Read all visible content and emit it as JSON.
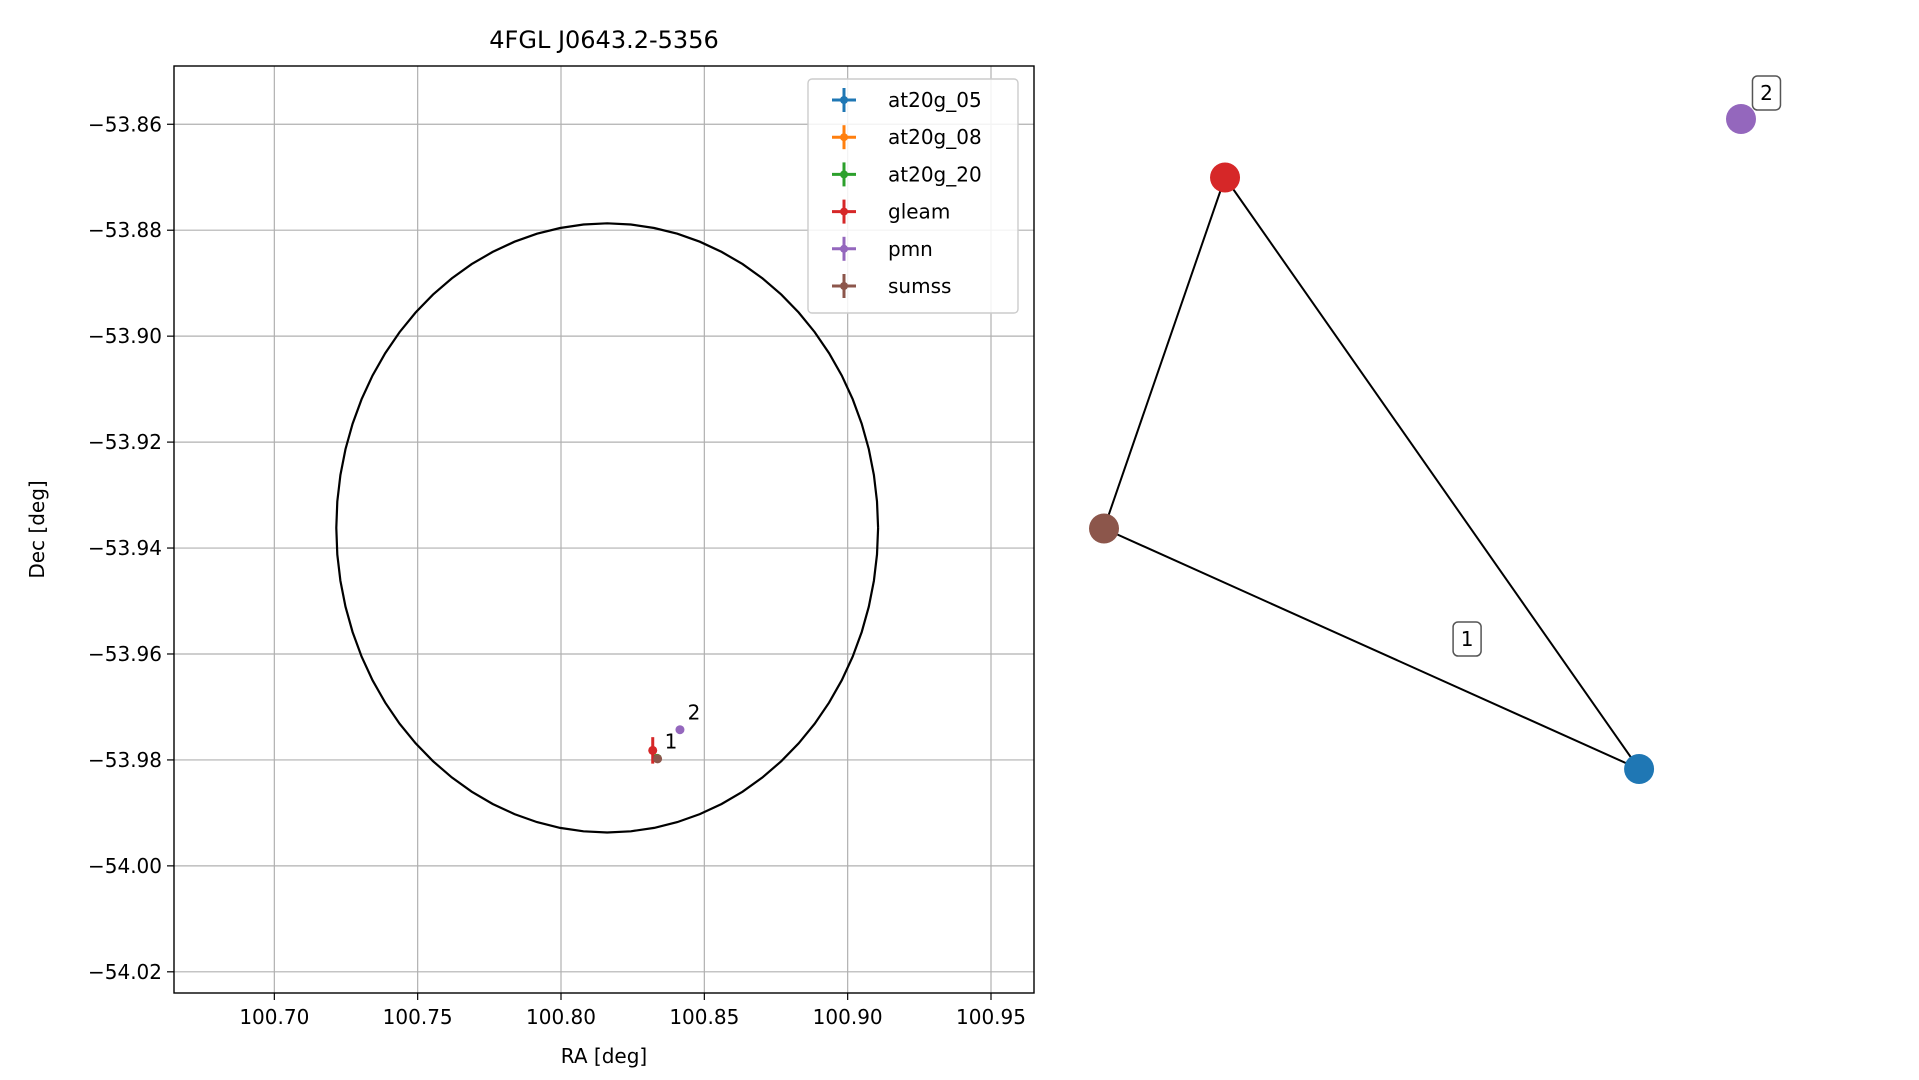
{
  "chart_data": [
    {
      "type": "scatter",
      "title": "4FGL J0643.2-5356",
      "xlabel": "RA [deg]",
      "ylabel": "Dec [deg]",
      "xlim": [
        100.665,
        100.965
      ],
      "ylim": [
        -54.024,
        -53.849
      ],
      "xticks": [
        100.7,
        100.75,
        100.8,
        100.85,
        100.9,
        100.95
      ],
      "xtick_labels": [
        "100.70",
        "100.75",
        "100.80",
        "100.85",
        "100.90",
        "100.95"
      ],
      "yticks": [
        -53.86,
        -53.88,
        -53.9,
        -53.92,
        -53.94,
        -53.96,
        -53.98,
        -54.0,
        -54.02
      ],
      "ytick_labels": [
        "−53.86",
        "−53.88",
        "−53.90",
        "−53.92",
        "−53.94",
        "−53.96",
        "−53.98",
        "−54.00",
        "−54.02"
      ],
      "grid": true,
      "legend_position": "top-right",
      "ellipse": {
        "center": [
          100.8161,
          -53.9362
        ],
        "semi_axis_ra": 0.0945,
        "semi_axis_dec": 0.0575,
        "color": "#000000"
      },
      "series": [
        {
          "name": "at20g_05",
          "color": "#1f77b4",
          "points": [
            {
              "x": 100.8335,
              "y": -53.9797
            }
          ]
        },
        {
          "name": "at20g_08",
          "color": "#ff7f0e",
          "points": [
            {
              "x": 100.8335,
              "y": -53.9797
            }
          ]
        },
        {
          "name": "at20g_20",
          "color": "#2ca02c",
          "points": [
            {
              "x": 100.8335,
              "y": -53.9797
            }
          ]
        },
        {
          "name": "gleam",
          "color": "#d62728",
          "points": [
            {
              "x": 100.832,
              "y": -53.9782,
              "yerr": 0.0025
            }
          ]
        },
        {
          "name": "pmn",
          "color": "#9467bd",
          "points": [
            {
              "x": 100.8415,
              "y": -53.9743
            }
          ]
        },
        {
          "name": "sumss",
          "color": "#8c564b",
          "points": [
            {
              "x": 100.8337,
              "y": -53.9798
            }
          ]
        }
      ],
      "annotations": [
        {
          "text": "1",
          "x": 100.8335,
          "y": -53.9797
        },
        {
          "text": "2",
          "x": 100.8415,
          "y": -53.9743
        }
      ]
    },
    {
      "type": "network",
      "nodes": [
        {
          "id": "gleam",
          "color": "#d62728",
          "pos": [
            0.19,
            0.91
          ]
        },
        {
          "id": "sumss",
          "color": "#8c564b",
          "pos": [
            0.0,
            0.37
          ]
        },
        {
          "id": "at20g",
          "color": "#1f77b4",
          "pos": [
            0.84,
            0.0
          ]
        },
        {
          "id": "pmn",
          "color": "#9467bd",
          "pos": [
            1.0,
            1.0
          ]
        }
      ],
      "edges": [
        [
          "gleam",
          "sumss"
        ],
        [
          "gleam",
          "at20g"
        ],
        [
          "sumss",
          "at20g"
        ]
      ],
      "labels": [
        {
          "text": "1",
          "pos": [
            0.57,
            0.2
          ]
        },
        {
          "text": "2",
          "pos": [
            1.04,
            1.04
          ]
        }
      ]
    }
  ]
}
